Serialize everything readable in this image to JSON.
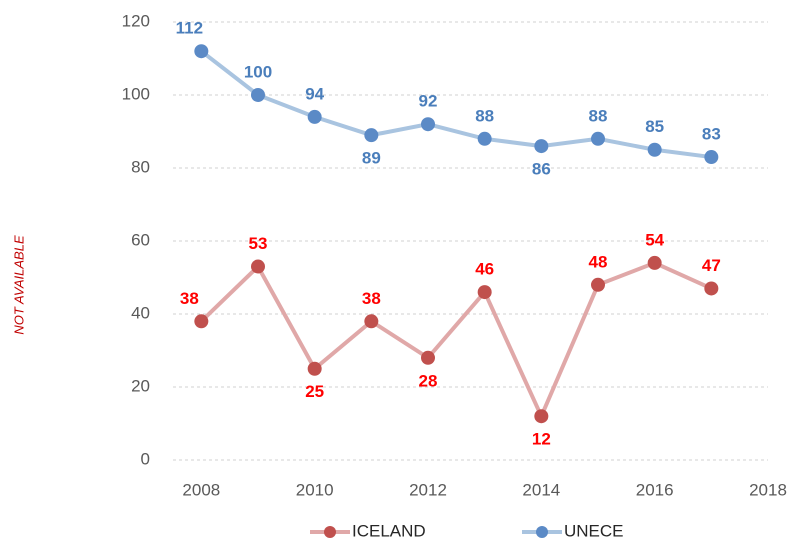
{
  "chart_data": {
    "type": "line",
    "ylabel": "NOT AVAILABLE",
    "x": [
      2008,
      2009,
      2010,
      2011,
      2012,
      2013,
      2014,
      2015,
      2016,
      2017
    ],
    "series": [
      {
        "name": "ICELAND",
        "color": "#e0a8a8",
        "marker_color": "#c0504d",
        "label_color": "#ff0000",
        "values": [
          38,
          53,
          25,
          38,
          28,
          46,
          12,
          48,
          54,
          47
        ]
      },
      {
        "name": "UNECE",
        "color": "#a9c4e0",
        "marker_color": "#5b8ac6",
        "label_color": "#4a7ebb",
        "values": [
          112,
          100,
          94,
          89,
          92,
          88,
          86,
          88,
          85,
          83
        ]
      }
    ],
    "xlim": [
      2007.5,
      2018
    ],
    "xticks": [
      2008,
      2010,
      2012,
      2014,
      2016,
      2018
    ],
    "ylim": [
      0,
      120
    ],
    "yticks": [
      0,
      20,
      40,
      60,
      80,
      100,
      120
    ],
    "grid": true,
    "legend": "bottom"
  }
}
